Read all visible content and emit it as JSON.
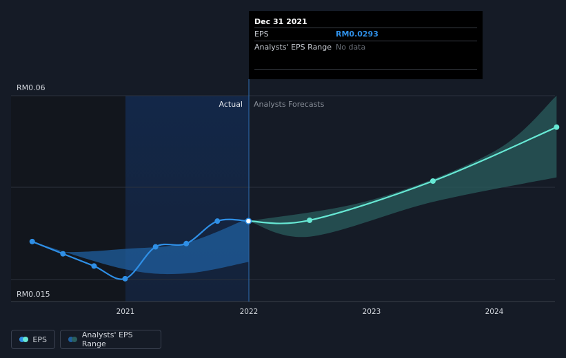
{
  "chart_data": {
    "type": "line",
    "y_axis": {
      "top_label": "RM0.06",
      "bottom_label": "RM0.015",
      "ylim": [
        0.015,
        0.06
      ]
    },
    "x_axis": {
      "ticks": [
        "2021",
        "2022",
        "2023",
        "2024"
      ]
    },
    "sections": {
      "actual_label": "Actual",
      "forecast_label": "Analysts Forecasts"
    },
    "series": [
      {
        "name": "EPS",
        "points": [
          {
            "date": "2020-03-31",
            "value": 0.0243
          },
          {
            "date": "2020-06-30",
            "value": 0.0213
          },
          {
            "date": "2020-09-30",
            "value": 0.0183
          },
          {
            "date": "2020-12-31",
            "value": 0.0152
          },
          {
            "date": "2021-03-31",
            "value": 0.023
          },
          {
            "date": "2021-06-30",
            "value": 0.0238
          },
          {
            "date": "2021-09-30",
            "value": 0.0293
          },
          {
            "date": "2021-12-31",
            "value": 0.0293
          }
        ]
      },
      {
        "name": "EPS forecast",
        "points": [
          {
            "date": "2021-12-31",
            "value": 0.0293
          },
          {
            "date": "2022-06-30",
            "value": 0.0295
          },
          {
            "date": "2023-06-30",
            "value": 0.0391
          },
          {
            "date": "2024-06-30",
            "value": 0.0523
          }
        ]
      }
    ],
    "analysts_range_past": {
      "upper": [
        {
          "date": "2020-03-31",
          "value": 0.0243
        },
        {
          "date": "2020-06-30",
          "value": 0.0218
        },
        {
          "date": "2020-12-31",
          "value": 0.0225
        },
        {
          "date": "2021-06-30",
          "value": 0.024
        },
        {
          "date": "2021-12-31",
          "value": 0.03
        }
      ],
      "lower": [
        {
          "date": "2020-03-31",
          "value": 0.0243
        },
        {
          "date": "2020-12-31",
          "value": 0.0175
        },
        {
          "date": "2021-06-30",
          "value": 0.0165
        },
        {
          "date": "2021-12-31",
          "value": 0.0193
        }
      ]
    },
    "analysts_range_forecast": {
      "upper": [
        {
          "date": "2021-12-31",
          "value": 0.0293
        },
        {
          "date": "2022-12-31",
          "value": 0.0345
        },
        {
          "date": "2023-12-31",
          "value": 0.0465
        },
        {
          "date": "2024-06-30",
          "value": 0.06
        }
      ],
      "lower": [
        {
          "date": "2021-12-31",
          "value": 0.0293
        },
        {
          "date": "2022-06-30",
          "value": 0.0255
        },
        {
          "date": "2023-06-30",
          "value": 0.034
        },
        {
          "date": "2024-06-30",
          "value": 0.04
        }
      ]
    },
    "grid": true,
    "colors": {
      "eps": "#2f8fe6",
      "forecast": "#67e8d4",
      "range_past": "#1f5f9f",
      "range_forecast": "#2a5e5e",
      "actual_band": "#13284a"
    }
  },
  "tooltip": {
    "date": "Dec 31 2021",
    "eps_label": "EPS",
    "eps_value": "RM0.0293",
    "range_label": "Analysts' EPS Range",
    "range_value": "No data"
  },
  "legend": {
    "eps_label": "EPS",
    "range_label": "Analysts' EPS Range"
  }
}
